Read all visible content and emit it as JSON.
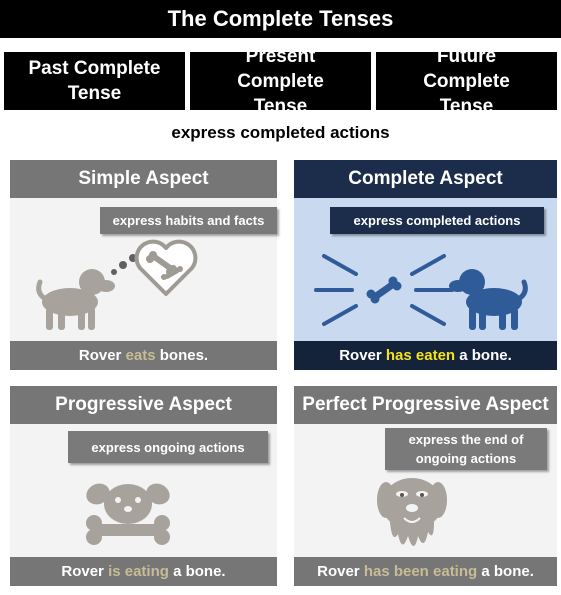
{
  "title": "The Complete Tenses",
  "tenses": [
    "Past Complete Tense",
    "Present Complete Tense",
    "Future Complete Tense"
  ],
  "subtitle": "express completed actions",
  "panels": [
    {
      "heading": "Simple Aspect",
      "callout": "express habits and facts",
      "sentence_before": "Rover ",
      "sentence_verb": "eats",
      "sentence_after": " bones.",
      "icons": [
        "dog-icon",
        "thought-bubble-icon",
        "heart-icon",
        "bone-icon"
      ]
    },
    {
      "heading": "Complete Aspect",
      "callout": "express completed actions",
      "sentence_before": "Rover ",
      "sentence_verb": "has eaten",
      "sentence_after": " a bone.",
      "icons": [
        "dog-icon",
        "bone-icon",
        "burst-lines-icon"
      ]
    },
    {
      "heading": "Progressive Aspect",
      "callout": "express ongoing actions",
      "sentence_before": "Rover ",
      "sentence_verb": "is eating",
      "sentence_after": " a bone.",
      "icons": [
        "dog-face-icon",
        "bone-icon"
      ]
    },
    {
      "heading": "Perfect Progressive Aspect",
      "callout": "express the end of ongoing actions",
      "sentence_before": "Rover ",
      "sentence_verb": "has been eating",
      "sentence_after": " a bone.",
      "icons": [
        "drooling-dog-icon"
      ]
    }
  ],
  "colors": {
    "panel_gray": "#767676",
    "panel_navy": "#1b2d4a",
    "complete_background": "#c9d9ef",
    "verb_highlight_yellow": "#f5e31a",
    "verb_highlight_tan": "#c7bc95",
    "icon_blue": "#2f5b99",
    "icon_gray": "#a7a39c"
  }
}
